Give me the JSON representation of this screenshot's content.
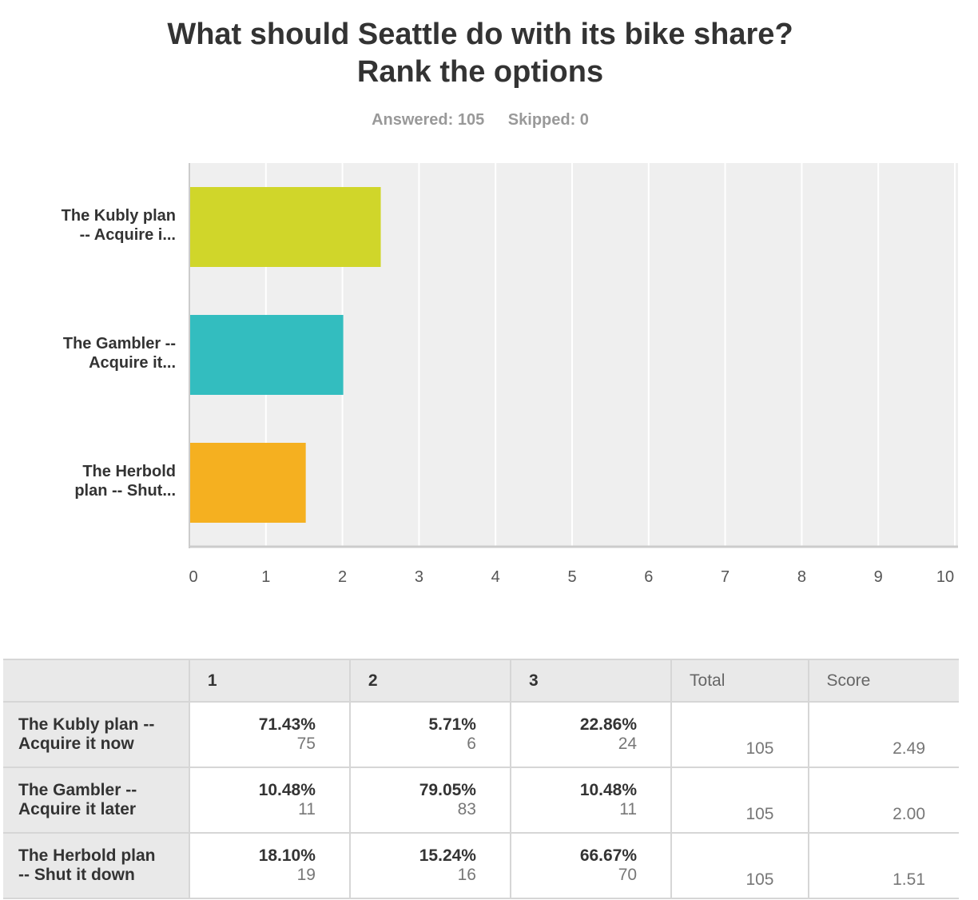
{
  "title_line1": "What should Seattle do with its bike share?",
  "title_line2": "Rank the options",
  "answered": "Answered: 105",
  "skipped": "Skipped: 0",
  "chart_data": {
    "type": "bar",
    "orientation": "horizontal",
    "categories": [
      "The Kubly plan -- Acquire i...",
      "The Gambler -- Acquire it...",
      "The Herbold plan -- Shut..."
    ],
    "category_lines": [
      [
        "The Kubly plan",
        "-- Acquire i..."
      ],
      [
        "The Gambler --",
        "Acquire it..."
      ],
      [
        "The Herbold",
        "plan -- Shut..."
      ]
    ],
    "values": [
      2.49,
      2.0,
      1.51
    ],
    "colors": [
      "#d0d62a",
      "#33bdbf",
      "#f5b020"
    ],
    "xlim": [
      0,
      10
    ],
    "xticks": [
      "0",
      "1",
      "2",
      "3",
      "4",
      "5",
      "6",
      "7",
      "8",
      "9",
      "10"
    ],
    "grid": true
  },
  "table": {
    "headers": [
      "",
      "1",
      "2",
      "3",
      "Total",
      "Score"
    ],
    "rows": [
      {
        "label": [
          "The Kubly plan --",
          "Acquire it now"
        ],
        "cells": [
          [
            "71.43%",
            "75"
          ],
          [
            "5.71%",
            "6"
          ],
          [
            "22.86%",
            "24"
          ]
        ],
        "total": "105",
        "score": "2.49"
      },
      {
        "label": [
          "The Gambler --",
          "Acquire it later"
        ],
        "cells": [
          [
            "10.48%",
            "11"
          ],
          [
            "79.05%",
            "83"
          ],
          [
            "10.48%",
            "11"
          ]
        ],
        "total": "105",
        "score": "2.00"
      },
      {
        "label": [
          "The Herbold plan",
          "-- Shut it down"
        ],
        "cells": [
          [
            "18.10%",
            "19"
          ],
          [
            "15.24%",
            "16"
          ],
          [
            "66.67%",
            "70"
          ]
        ],
        "total": "105",
        "score": "1.51"
      }
    ]
  }
}
